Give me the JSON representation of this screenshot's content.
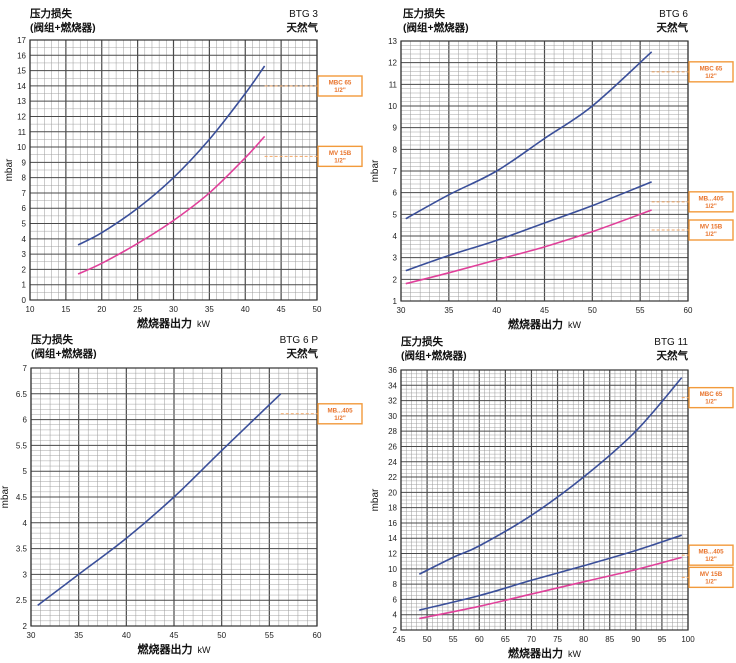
{
  "colors": {
    "blue": "#3a4f9a",
    "pink": "#e0409a",
    "tag_border": "#f29a3c",
    "tag_text": "#e8742c",
    "dash": "#f2a664",
    "grid_major": "#4a4a4a",
    "grid_minor": "#9a9a9a",
    "background": "#ffffff"
  },
  "chart_data": [
    {
      "id": "btg3",
      "type": "line",
      "model": "BTG 3",
      "gas": "天然气",
      "title_line1": "压力损失",
      "title_line2": "(阀组+燃烧器)",
      "xlabel": "燃烧器出力",
      "xunit": "kW",
      "ylabel": "mbar",
      "xlim": [
        10,
        50
      ],
      "ylim": [
        0,
        17
      ],
      "x_minor": 1,
      "y_minor": 0.5,
      "x_ticks": [
        10,
        15,
        20,
        25,
        30,
        35,
        40,
        45,
        50
      ],
      "y_ticks": [
        0,
        1,
        2,
        3,
        4,
        5,
        6,
        7,
        8,
        9,
        10,
        11,
        12,
        13,
        14,
        15,
        16,
        17
      ],
      "series": [
        {
          "name": "MBC 65 1/2\"",
          "label_lines": [
            "MBC 65",
            "1/2\""
          ],
          "color": "blue",
          "x": [
            16.7,
            20,
            25,
            30,
            35,
            40,
            42.7
          ],
          "y": [
            3.6,
            4.4,
            6.0,
            8.0,
            10.5,
            13.5,
            15.3
          ]
        },
        {
          "name": "MV 15B 1/2\"",
          "label_lines": [
            "MV 15B",
            "1/2\""
          ],
          "color": "pink",
          "x": [
            16.7,
            20,
            25,
            30,
            35,
            40,
            42.7
          ],
          "y": [
            1.7,
            2.4,
            3.7,
            5.2,
            7.0,
            9.3,
            10.7
          ]
        }
      ]
    },
    {
      "id": "btg6",
      "type": "line",
      "model": "BTG  6",
      "gas": "天然气",
      "title_line1": "压力损失",
      "title_line2": "(阀组+燃烧器)",
      "xlabel": "燃烧器出力",
      "xunit": "kW",
      "ylabel": "mbar",
      "xlim": [
        30,
        60
      ],
      "ylim": [
        1,
        13
      ],
      "x_minor": 1,
      "y_minor": 0.2,
      "x_ticks": [
        30,
        35,
        40,
        45,
        50,
        55,
        60
      ],
      "y_ticks": [
        1,
        2,
        3,
        4,
        5,
        6,
        7,
        8,
        9,
        10,
        11,
        12,
        13
      ],
      "series": [
        {
          "name": "MBC 65 1/2\"",
          "label_lines": [
            "MBC 65",
            "1/2\""
          ],
          "color": "blue",
          "x": [
            30.5,
            35,
            40,
            45,
            50,
            56.2
          ],
          "y": [
            4.8,
            5.9,
            7.0,
            8.5,
            10.0,
            12.5
          ]
        },
        {
          "name": "MB...405 1/2\"",
          "label_lines": [
            "MB...405",
            "1/2\""
          ],
          "color": "blue",
          "x": [
            30.5,
            35,
            40,
            45,
            50,
            56.2
          ],
          "y": [
            2.4,
            3.1,
            3.8,
            4.6,
            5.4,
            6.5
          ]
        },
        {
          "name": "MV 15B 1/2\"",
          "label_lines": [
            "MV 15B",
            "1/2\""
          ],
          "color": "pink",
          "x": [
            30.5,
            35,
            40,
            45,
            50,
            56.2
          ],
          "y": [
            1.8,
            2.3,
            2.9,
            3.5,
            4.2,
            5.2
          ]
        }
      ]
    },
    {
      "id": "btg6p",
      "type": "line",
      "model": "BTG 6 P",
      "gas": "天然气",
      "title_line1": "压力损失",
      "title_line2": "(阀组+燃烧器)",
      "xlabel": "燃烧器出力",
      "xunit": "kW",
      "ylabel": "mbar",
      "xlim": [
        30,
        60
      ],
      "ylim": [
        2,
        7
      ],
      "x_minor": 1,
      "y_minor": 0.1,
      "x_ticks": [
        30,
        35,
        40,
        45,
        50,
        55,
        60
      ],
      "y_ticks": [
        2,
        2.5,
        3,
        3.5,
        4,
        4.5,
        5,
        5.5,
        6,
        6.5,
        7
      ],
      "series": [
        {
          "name": "MB...405 1/2\"",
          "label_lines": [
            "MB...405",
            "1/2\""
          ],
          "color": "blue",
          "x": [
            30.7,
            35,
            40,
            45,
            50,
            56.2
          ],
          "y": [
            2.4,
            3.0,
            3.7,
            4.5,
            5.4,
            6.5
          ]
        }
      ]
    },
    {
      "id": "btg11",
      "type": "line",
      "model": "BTG 11",
      "gas": "天然气",
      "title_line1": "压力损失",
      "title_line2": "(阀组+燃烧器)",
      "xlabel": "燃烧器出力",
      "xunit": "kW",
      "ylabel": "mbar",
      "xlim": [
        45,
        100
      ],
      "ylim": [
        2,
        36
      ],
      "x_minor": 1,
      "y_minor": 0.5,
      "x_ticks": [
        45,
        50,
        55,
        60,
        65,
        70,
        75,
        80,
        85,
        90,
        95,
        100
      ],
      "y_ticks": [
        2,
        4,
        6,
        8,
        10,
        12,
        14,
        16,
        18,
        20,
        22,
        24,
        26,
        28,
        30,
        32,
        34,
        36
      ],
      "series": [
        {
          "name": "MBC 65 1/2\"",
          "label_lines": [
            "MBC 65",
            "1/2\""
          ],
          "color": "blue",
          "x": [
            48.5,
            55,
            60,
            70,
            80,
            90,
            98.8
          ],
          "y": [
            9.3,
            11.5,
            13.0,
            17.0,
            22.0,
            28.0,
            35.0
          ]
        },
        {
          "name": "MB...405 1/2\"",
          "label_lines": [
            "MB...405",
            "1/2\""
          ],
          "color": "blue",
          "x": [
            48.5,
            60,
            70,
            80,
            90,
            98.8
          ],
          "y": [
            4.6,
            6.5,
            8.5,
            10.4,
            12.4,
            14.4
          ]
        },
        {
          "name": "MV 15B 1/2\"",
          "label_lines": [
            "MV 15B",
            "1/2\""
          ],
          "color": "pink",
          "x": [
            48.5,
            60,
            70,
            80,
            90,
            98.8
          ],
          "y": [
            3.5,
            5.1,
            6.7,
            8.3,
            9.9,
            11.5
          ]
        }
      ]
    }
  ]
}
